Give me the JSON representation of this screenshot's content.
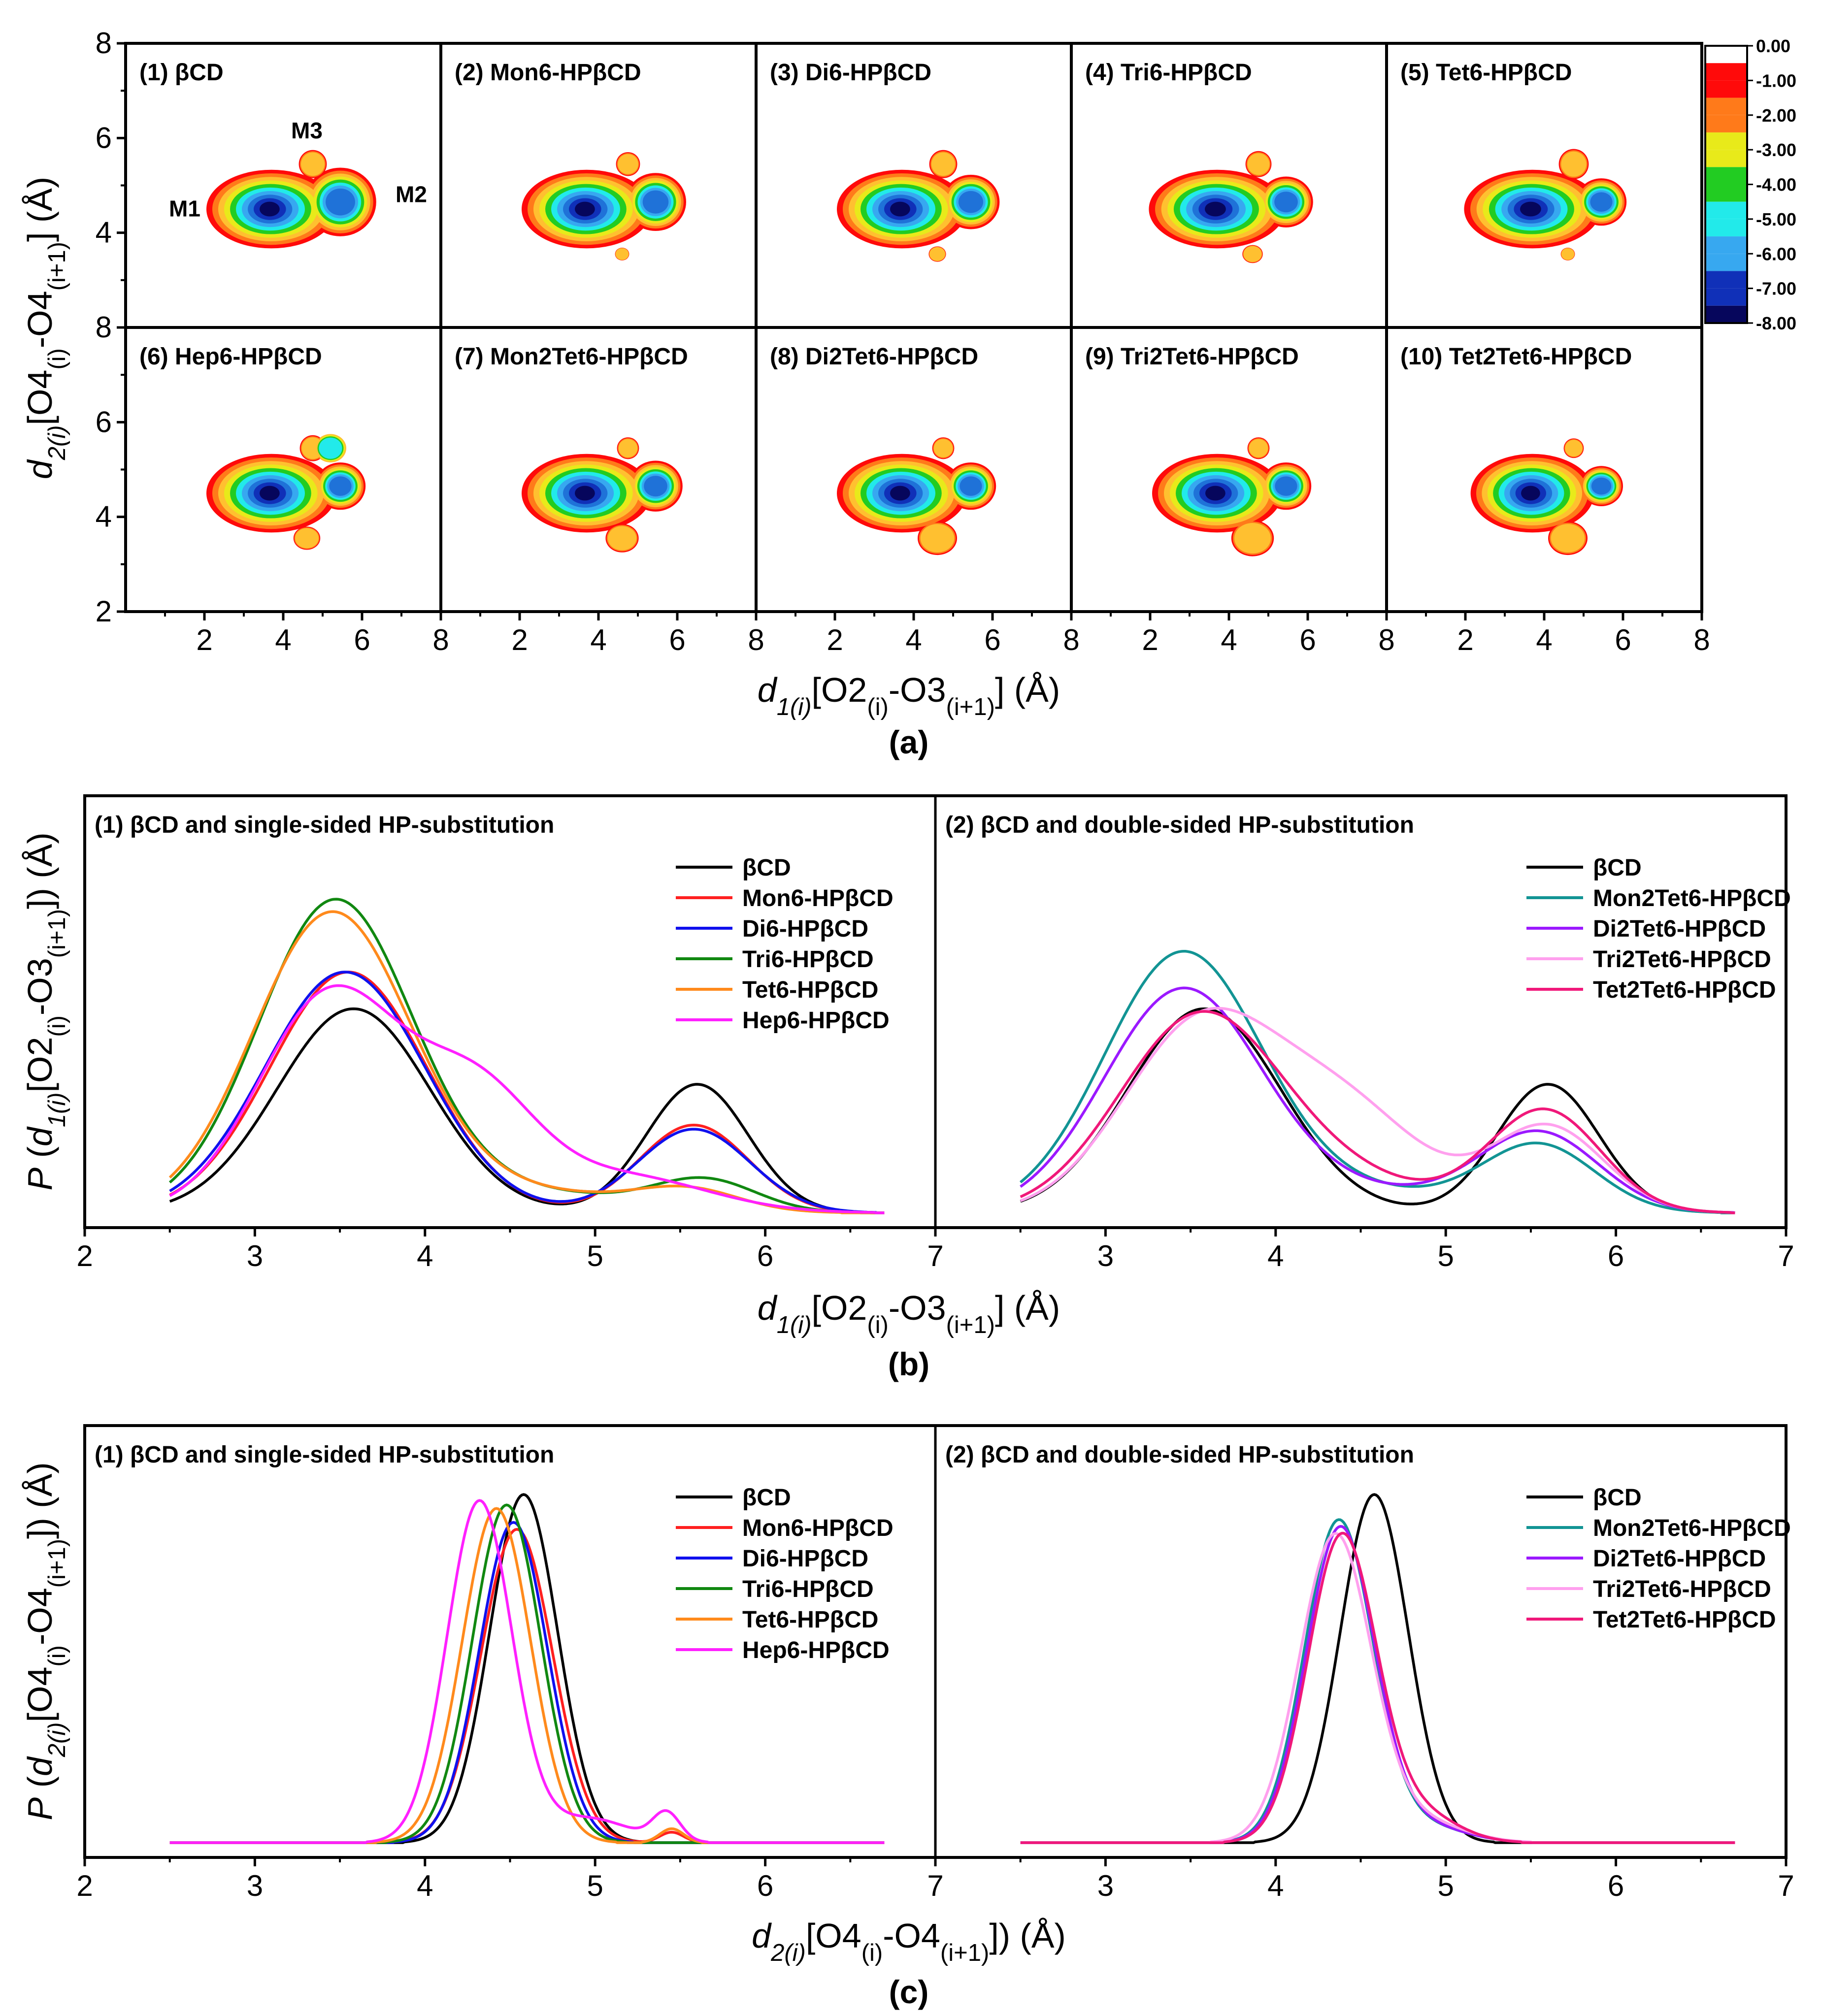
{
  "figure": {
    "panel_a_label": "(a)",
    "panel_b_label": "(b)",
    "panel_c_label": "(c)",
    "map_annotations": {
      "M1": "M1",
      "M2": "M2",
      "M3": "M3"
    }
  },
  "colors": {
    "bcd": "#000000",
    "mon6": "#ff2020",
    "di6": "#1010ee",
    "tri6": "#118811",
    "tet6": "#ff8a1c",
    "hep6": "#ff20ff",
    "mon2tet6": "#129494",
    "di2tet6": "#9b19ff",
    "tri2tet6": "#ffa0ee",
    "tet2tet6": "#f0187a",
    "contour_levels": [
      "#ff0a0a",
      "#ff7a1a",
      "#ffc030",
      "#e8ea1a",
      "#22cc22",
      "#22eaea",
      "#37a8f0",
      "#1f72d8",
      "#1030b8",
      "#06065c"
    ]
  },
  "chart_data": [
    {
      "type": "heatmap",
      "panel": "(a)",
      "xlabel": "d1(i)[O2(i)-O3(i+1)] (Å)",
      "ylabel": "d2(i)[O4(i)-O4(i+1)] (Å)",
      "xlim": [
        0,
        8
      ],
      "ylim": [
        2,
        8
      ],
      "xticks": [
        "2",
        "4",
        "6",
        "8"
      ],
      "yticks": [
        "2",
        "4",
        "6",
        "8"
      ],
      "colorbar": {
        "min": -8.0,
        "max": 0.0,
        "ticks": [
          "0.00",
          "-1.00",
          "-2.00",
          "-3.00",
          "-4.00",
          "-5.00",
          "-6.00",
          "-7.00",
          "-8.00"
        ]
      },
      "subplots": [
        "(1) βCD",
        "(2) Mon6-HPβCD",
        "(3) Di6-HPβCD",
        "(4) Tri6-HPβCD",
        "(5) Tet6-HPβCD",
        "(6) Hep6-HPβCD",
        "(7) Mon2Tet6-HPβCD",
        "(8) Di2Tet6-HPβCD",
        "(9) Tri2Tet6-HPβCD",
        "(10) Tet2Tet6-HPβCD"
      ],
      "minima": [
        {
          "name": "M1",
          "x": 3.6,
          "y": 4.5
        },
        {
          "name": "M2",
          "x": 5.6,
          "y": 4.7
        },
        {
          "name": "M3",
          "x": 4.6,
          "y": 5.7
        }
      ]
    },
    {
      "type": "line",
      "panel": "(b)",
      "xlabel": "d1(i)[O2(i)-O3(i+1)] (Å)",
      "ylabel": "P (d1(i)[O2(i)-O3(i+1)]) (Å)",
      "xlim": [
        2,
        7
      ],
      "xticks": [
        "2",
        "3",
        "4",
        "5",
        "6",
        "7"
      ],
      "subplots": [
        {
          "title": "(1) βCD and single-sided HP-substitution",
          "series": [
            {
              "name": "βCD",
              "key": "bcd",
              "components": [
                {
                  "a": 1.0,
                  "mu": 3.58,
                  "s": 0.45
                },
                {
                  "a": 0.63,
                  "mu": 5.6,
                  "s": 0.3
                }
              ]
            },
            {
              "name": "Mon6-HPβCD",
              "key": "mon6",
              "components": [
                {
                  "a": 1.18,
                  "mu": 3.55,
                  "s": 0.46
                },
                {
                  "a": 0.43,
                  "mu": 5.58,
                  "s": 0.32
                }
              ]
            },
            {
              "name": "Di6-HPβCD",
              "key": "di6",
              "components": [
                {
                  "a": 1.18,
                  "mu": 3.53,
                  "s": 0.47
                },
                {
                  "a": 0.41,
                  "mu": 5.58,
                  "s": 0.33
                }
              ]
            },
            {
              "name": "Tri6-HPβCD",
              "key": "tri6",
              "components": [
                {
                  "a": 1.52,
                  "mu": 3.47,
                  "s": 0.45
                },
                {
                  "a": 0.15,
                  "mu": 5.65,
                  "s": 0.3
                },
                {
                  "a": 0.1,
                  "mu": 4.6,
                  "s": 0.6
                }
              ]
            },
            {
              "name": "Tet6-HPβCD",
              "key": "tet6",
              "components": [
                {
                  "a": 1.46,
                  "mu": 3.45,
                  "s": 0.46
                },
                {
                  "a": 0.1,
                  "mu": 5.55,
                  "s": 0.3
                },
                {
                  "a": 0.1,
                  "mu": 4.6,
                  "s": 0.6
                }
              ]
            },
            {
              "name": "Hep6-HPβCD",
              "key": "hep6",
              "components": [
                {
                  "a": 1.08,
                  "mu": 3.45,
                  "s": 0.42
                },
                {
                  "a": 0.55,
                  "mu": 4.3,
                  "s": 0.35
                },
                {
                  "a": 0.18,
                  "mu": 5.15,
                  "s": 0.5
                }
              ]
            }
          ]
        },
        {
          "title": "(2) βCD and double-sided HP-substitution",
          "series": [
            {
              "name": "βCD",
              "key": "bcd",
              "components": [
                {
                  "a": 1.0,
                  "mu": 3.58,
                  "s": 0.45
                },
                {
                  "a": 0.63,
                  "mu": 5.6,
                  "s": 0.3
                }
              ]
            },
            {
              "name": "Mon2Tet6-HPβCD",
              "key": "mon2tet6",
              "components": [
                {
                  "a": 1.26,
                  "mu": 3.45,
                  "s": 0.46
                },
                {
                  "a": 0.32,
                  "mu": 5.55,
                  "s": 0.33
                },
                {
                  "a": 0.1,
                  "mu": 4.5,
                  "s": 0.6
                }
              ]
            },
            {
              "name": "Di2Tet6-HPβCD",
              "key": "di2tet6",
              "components": [
                {
                  "a": 1.08,
                  "mu": 3.45,
                  "s": 0.46
                },
                {
                  "a": 0.38,
                  "mu": 5.55,
                  "s": 0.35
                },
                {
                  "a": 0.1,
                  "mu": 4.5,
                  "s": 0.6
                }
              ]
            },
            {
              "name": "Tri2Tet6-HPβCD",
              "key": "tri2tet6",
              "components": [
                {
                  "a": 0.9,
                  "mu": 3.55,
                  "s": 0.45
                },
                {
                  "a": 0.5,
                  "mu": 4.4,
                  "s": 0.45
                },
                {
                  "a": 0.42,
                  "mu": 5.6,
                  "s": 0.33
                }
              ]
            },
            {
              "name": "Tet2Tet6-HPβCD",
              "key": "tet2tet6",
              "components": [
                {
                  "a": 0.95,
                  "mu": 3.55,
                  "s": 0.47
                },
                {
                  "a": 0.5,
                  "mu": 5.58,
                  "s": 0.33
                },
                {
                  "a": 0.15,
                  "mu": 4.4,
                  "s": 0.5
                }
              ]
            }
          ]
        }
      ]
    },
    {
      "type": "line",
      "panel": "(c)",
      "xlabel": "d2(i)[O4(i)-O4(i+1)]) (Å)",
      "ylabel": "P (d2(i)[O4(i)-O4(i+1)]) (Å)",
      "xlim": [
        2,
        7
      ],
      "xticks": [
        "2",
        "3",
        "4",
        "5",
        "6",
        "7"
      ],
      "subplots": [
        {
          "title": "(1) βCD and single-sided HP-substitution",
          "series": [
            {
              "name": "βCD",
              "key": "bcd",
              "components": [
                {
                  "a": 1.0,
                  "mu": 4.58,
                  "s": 0.2
                }
              ]
            },
            {
              "name": "Mon6-HPβCD",
              "key": "mon6",
              "components": [
                {
                  "a": 0.9,
                  "mu": 4.54,
                  "s": 0.21
                },
                {
                  "a": 0.03,
                  "mu": 5.45,
                  "s": 0.07
                }
              ]
            },
            {
              "name": "Di6-HPβCD",
              "key": "di6",
              "components": [
                {
                  "a": 0.92,
                  "mu": 4.52,
                  "s": 0.2
                }
              ]
            },
            {
              "name": "Tri6-HPβCD",
              "key": "tri6",
              "components": [
                {
                  "a": 0.97,
                  "mu": 4.48,
                  "s": 0.2
                }
              ]
            },
            {
              "name": "Tet6-HPβCD",
              "key": "tet6",
              "components": [
                {
                  "a": 0.96,
                  "mu": 4.42,
                  "s": 0.2
                },
                {
                  "a": 0.04,
                  "mu": 5.45,
                  "s": 0.07
                }
              ]
            },
            {
              "name": "Hep6-HPβCD",
              "key": "hep6",
              "components": [
                {
                  "a": 0.98,
                  "mu": 4.32,
                  "s": 0.19
                },
                {
                  "a": 0.07,
                  "mu": 4.95,
                  "s": 0.25
                },
                {
                  "a": 0.08,
                  "mu": 5.42,
                  "s": 0.08
                }
              ]
            }
          ]
        },
        {
          "title": "(2) βCD and double-sided HP-substitution",
          "series": [
            {
              "name": "βCD",
              "key": "bcd",
              "components": [
                {
                  "a": 1.0,
                  "mu": 4.58,
                  "s": 0.2
                }
              ]
            },
            {
              "name": "Mon2Tet6-HPβCD",
              "key": "mon2tet6",
              "components": [
                {
                  "a": 0.92,
                  "mu": 4.37,
                  "s": 0.2
                },
                {
                  "a": 0.05,
                  "mu": 4.85,
                  "s": 0.25
                }
              ]
            },
            {
              "name": "Di2Tet6-HPβCD",
              "key": "di2tet6",
              "components": [
                {
                  "a": 0.9,
                  "mu": 4.38,
                  "s": 0.2
                },
                {
                  "a": 0.05,
                  "mu": 4.85,
                  "s": 0.25
                }
              ]
            },
            {
              "name": "Tri2Tet6-HPβCD",
              "key": "tri2tet6",
              "components": [
                {
                  "a": 0.88,
                  "mu": 4.35,
                  "s": 0.21
                },
                {
                  "a": 0.06,
                  "mu": 4.85,
                  "s": 0.25
                }
              ]
            },
            {
              "name": "Tet2Tet6-HPβCD",
              "key": "tet2tet6",
              "components": [
                {
                  "a": 0.88,
                  "mu": 4.39,
                  "s": 0.2
                },
                {
                  "a": 0.08,
                  "mu": 4.85,
                  "s": 0.22
                }
              ]
            }
          ]
        }
      ]
    }
  ]
}
